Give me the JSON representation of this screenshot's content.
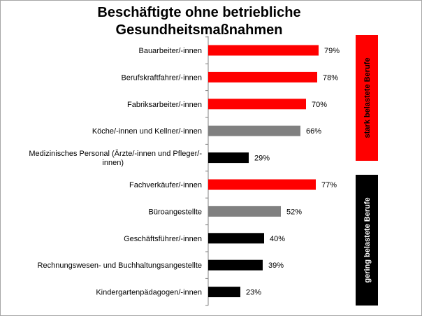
{
  "chart_data": {
    "type": "bar",
    "orientation": "horizontal",
    "title_lines": [
      "Beschäftigte ohne betriebliche",
      "Gesundheitsmaßnahmen"
    ],
    "categories": [
      "Bauarbeiter/-innen",
      "Berufskraftfahrer/-innen",
      "Fabriksarbeiter/-innen",
      "Köche/-innen und Kellner/-innen",
      "Medizinisches Personal (Ärzte/-innen und Pfleger/-innen)",
      "Fachverkäufer/-innen",
      "Büroangestellte",
      "Geschäftsführer/-innen",
      "Rechnungswesen- und Buchhaltungsangestellte",
      "Kindergartenpädagogen/-innen"
    ],
    "category_label_lines": [
      [
        "Bauarbeiter/-innen"
      ],
      [
        "Berufskraftfahrer/-innen"
      ],
      [
        "Fabriksarbeiter/-innen"
      ],
      [
        "Köche/-innen und Kellner/-innen"
      ],
      [
        "Medizinisches Personal (Ärzte/-innen und Pfleger/-",
        "innen)"
      ],
      [
        "Fachverkäufer/-innen"
      ],
      [
        "Büroangestellte"
      ],
      [
        "Geschäftsführer/-innen"
      ],
      [
        "Rechnungswesen- und Buchhaltungsangestellte"
      ],
      [
        "Kindergartenpädagogen/-innen"
      ]
    ],
    "values": [
      79,
      78,
      70,
      66,
      29,
      77,
      52,
      40,
      39,
      23
    ],
    "value_labels": [
      "79%",
      "78%",
      "70%",
      "66%",
      "29%",
      "77%",
      "52%",
      "40%",
      "39%",
      "23%"
    ],
    "bar_colors": [
      "#ff0000",
      "#ff0000",
      "#ff0000",
      "#808080",
      "#000000",
      "#ff0000",
      "#808080",
      "#000000",
      "#000000",
      "#000000"
    ],
    "xlim": [
      0,
      100
    ],
    "grid": false,
    "legend": "none",
    "groups": [
      {
        "label": "stark belastete Berufe",
        "categories": [
          0,
          1,
          2,
          3,
          4
        ],
        "color": "#ff0000",
        "text_color": "#000000"
      },
      {
        "label": "gering belastete Berufe",
        "categories": [
          5,
          6,
          7,
          8,
          9
        ],
        "color": "#000000",
        "text_color": "#ffffff"
      }
    ]
  }
}
